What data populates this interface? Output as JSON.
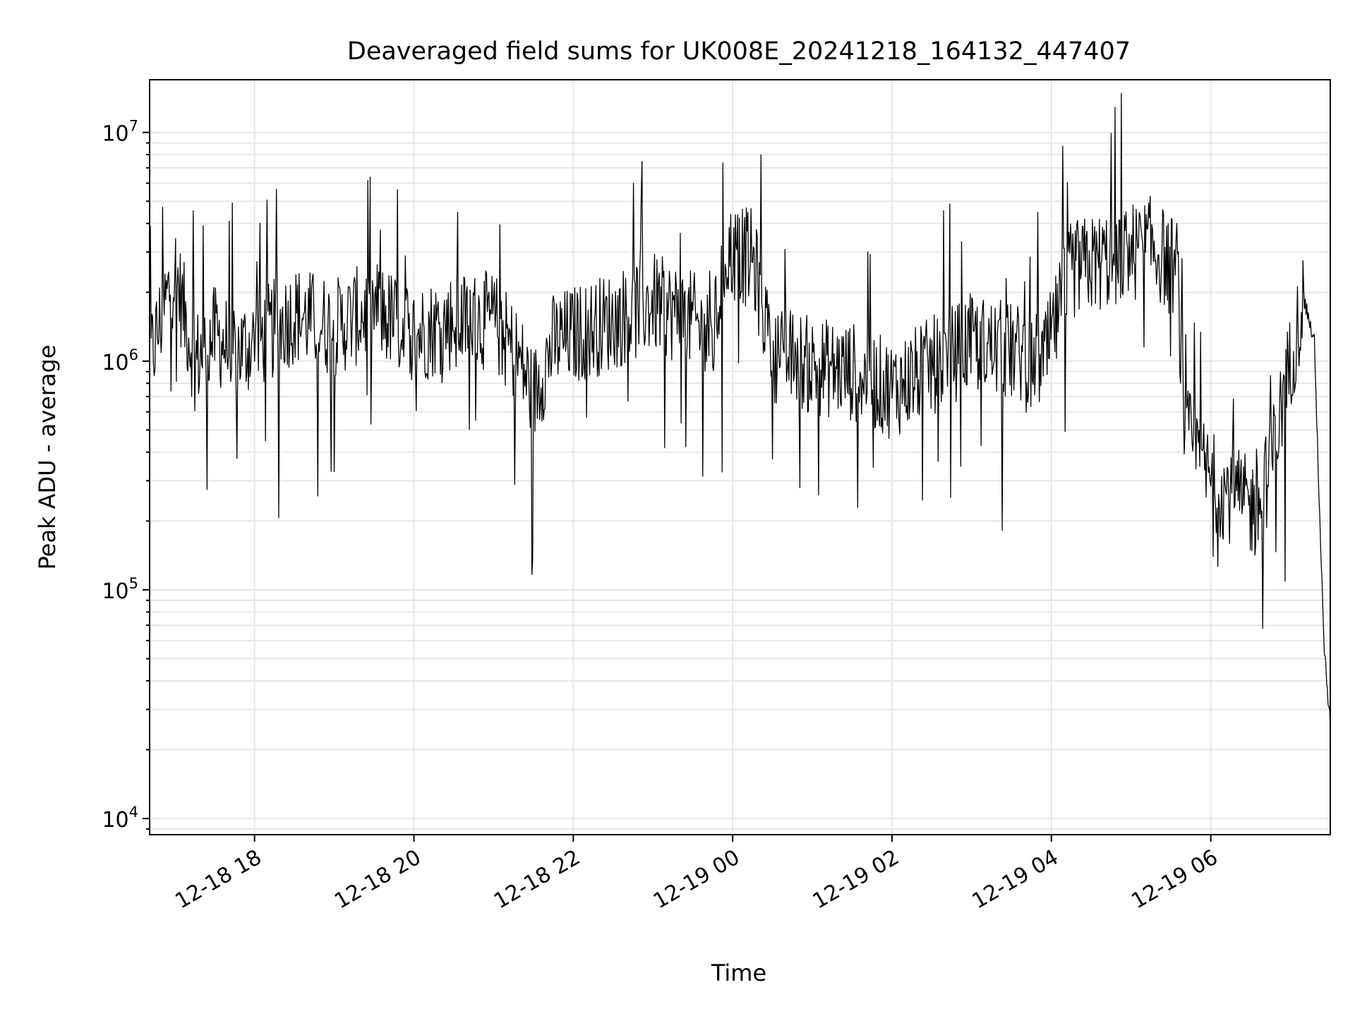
{
  "chart_data": {
    "type": "line",
    "title": "Deaveraged field sums for UK008E_20241218_164132_447407",
    "xlabel": "Time",
    "ylabel": "Peak ADU - average",
    "y_scale": "log",
    "ylim": [
      8500,
      17000000
    ],
    "xlim": [
      "2024-12-18 16:41",
      "2024-12-19 07:30"
    ],
    "grid": true,
    "line_color": "#000000",
    "grid_color": "#e6e6e6",
    "x_ticks": [
      {
        "t": "2024-12-18 18:00",
        "label": "12-18 18"
      },
      {
        "t": "2024-12-18 20:00",
        "label": "12-18 20"
      },
      {
        "t": "2024-12-18 22:00",
        "label": "12-18 22"
      },
      {
        "t": "2024-12-19 00:00",
        "label": "12-19 00"
      },
      {
        "t": "2024-12-19 02:00",
        "label": "12-19 02"
      },
      {
        "t": "2024-12-19 04:00",
        "label": "12-19 04"
      },
      {
        "t": "2024-12-19 06:00",
        "label": "12-19 06"
      }
    ],
    "y_ticks": [
      {
        "v": 10000,
        "base": "10",
        "exp": "4"
      },
      {
        "v": 100000,
        "base": "10",
        "exp": "5"
      },
      {
        "v": 1000000,
        "base": "10",
        "exp": "6"
      },
      {
        "v": 10000000,
        "base": "10",
        "exp": "7"
      }
    ],
    "series": [
      {
        "x": [
          "2024-12-18 16:41",
          "2024-12-18 17:00",
          "2024-12-18 17:15",
          "2024-12-18 17:30",
          "2024-12-18 17:45",
          "2024-12-18 18:00",
          "2024-12-18 18:30",
          "2024-12-18 19:00",
          "2024-12-18 19:30",
          "2024-12-18 20:00",
          "2024-12-18 20:30",
          "2024-12-18 21:00",
          "2024-12-18 21:20",
          "2024-12-18 21:30",
          "2024-12-18 21:45",
          "2024-12-18 22:00",
          "2024-12-18 22:30",
          "2024-12-18 23:00",
          "2024-12-18 23:30",
          "2024-12-18 23:45",
          "2024-12-18 23:55",
          "2024-12-19 00:15",
          "2024-12-19 00:30",
          "2024-12-19 01:00",
          "2024-12-19 01:30",
          "2024-12-19 02:00",
          "2024-12-19 02:30",
          "2024-12-19 03:00",
          "2024-12-19 03:30",
          "2024-12-19 03:55",
          "2024-12-19 04:15",
          "2024-12-19 04:45",
          "2024-12-19 05:15",
          "2024-12-19 05:35",
          "2024-12-19 05:40",
          "2024-12-19 06:00",
          "2024-12-19 06:20",
          "2024-12-19 06:35",
          "2024-12-19 06:45",
          "2024-12-19 07:00",
          "2024-12-19 07:10",
          "2024-12-19 07:18",
          "2024-12-19 07:25",
          "2024-12-19 07:30"
        ],
        "y": [
          1000000,
          2500000,
          1000000,
          1300000,
          1100000,
          1200000,
          1600000,
          1400000,
          1700000,
          1300000,
          1500000,
          1500000,
          1000000,
          700000,
          1200000,
          1300000,
          1500000,
          1800000,
          1500000,
          1200000,
          3000000,
          2800000,
          1100000,
          950000,
          900000,
          750000,
          950000,
          1200000,
          1100000,
          1000000,
          2500000,
          2800000,
          3200000,
          2500000,
          500000,
          300000,
          250000,
          220000,
          350000,
          1000000,
          1900000,
          1200000,
          60000,
          25000
        ]
      }
    ]
  }
}
